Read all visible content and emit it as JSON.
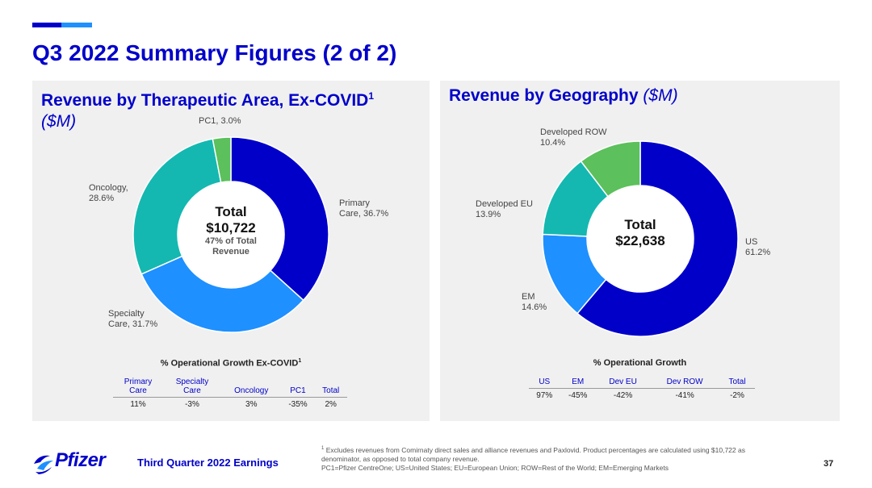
{
  "header": {
    "title": "Q3 2022 Summary Figures (2 of 2)",
    "accent_colors": [
      "#0000c9",
      "#1e90ff"
    ]
  },
  "panels": {
    "left": {
      "title": "Revenue by Therapeutic Area, Ex-COVID",
      "title_sup": "1",
      "title_sub": "($M)",
      "center_title": "Total",
      "center_value": "$10,722",
      "center_note_1": "47% of Total",
      "center_note_2": "Revenue",
      "slice_labels": {
        "primary_1": "Primary",
        "primary_2": "Care, 36.7%",
        "specialty_1": "Specialty",
        "specialty_2": "Care, 31.7%",
        "oncology_1": "Oncology,",
        "oncology_2": "28.6%",
        "pc1": "PC1, 3.0%"
      },
      "growth_title": "% Operational Growth Ex-COVID",
      "growth_title_sup": "1",
      "growth_table": {
        "headers": [
          [
            "Primary",
            "Care"
          ],
          [
            "Specialty",
            "Care"
          ],
          [
            "Oncology"
          ],
          [
            "PC1"
          ],
          [
            "Total"
          ]
        ],
        "values": [
          "11%",
          "-3%",
          "3%",
          "-35%",
          "2%"
        ]
      }
    },
    "right": {
      "title": "Revenue by Geography",
      "title_sub": "($M)",
      "center_title": "Total",
      "center_value": "$22,638",
      "slice_labels": {
        "us_1": "US",
        "us_2": "61.2%",
        "em_1": "EM",
        "em_2": "14.6%",
        "dev_eu_1": "Developed EU",
        "dev_eu_2": "13.9%",
        "dev_row_1": "Developed ROW",
        "dev_row_2": "10.4%"
      },
      "growth_title": "% Operational Growth",
      "growth_table": {
        "headers": [
          [
            "US"
          ],
          [
            "EM"
          ],
          [
            "Dev EU"
          ],
          [
            "Dev ROW"
          ],
          [
            "Total"
          ]
        ],
        "values": [
          "97%",
          "-45%",
          "-42%",
          "-41%",
          "-2%"
        ]
      }
    }
  },
  "chart_data": [
    {
      "type": "pie",
      "title": "Revenue by Therapeutic Area, Ex-COVID ($M)",
      "categories": [
        "Primary Care",
        "Specialty Care",
        "Oncology",
        "PC1"
      ],
      "values": [
        36.7,
        31.7,
        28.6,
        3.0
      ],
      "unit": "%",
      "total": "$10,722",
      "colors": [
        "#0000c9",
        "#1e90ff",
        "#14b8b0",
        "#5cc05c"
      ]
    },
    {
      "type": "pie",
      "title": "Revenue by Geography ($M)",
      "categories": [
        "US",
        "EM",
        "Developed EU",
        "Developed ROW"
      ],
      "values": [
        61.2,
        14.6,
        13.9,
        10.4
      ],
      "unit": "%",
      "total": "$22,638",
      "colors": [
        "#0000c9",
        "#1e90ff",
        "#14b8b0",
        "#5cc05c"
      ]
    },
    {
      "type": "table",
      "title": "% Operational Growth Ex-COVID",
      "categories": [
        "Primary Care",
        "Specialty Care",
        "Oncology",
        "PC1",
        "Total"
      ],
      "values": [
        11,
        -3,
        3,
        -35,
        2
      ],
      "unit": "%"
    },
    {
      "type": "table",
      "title": "% Operational Growth",
      "categories": [
        "US",
        "EM",
        "Dev EU",
        "Dev ROW",
        "Total"
      ],
      "values": [
        97,
        -45,
        -42,
        -41,
        -2
      ],
      "unit": "%"
    }
  ],
  "footer": {
    "logo_text": "Pfizer",
    "label": "Third Quarter 2022 Earnings",
    "footnote_sup": "1",
    "footnote_1": " Excludes revenues from Comirnaty direct sales and alliance revenues and Paxlovid. Product percentages are calculated using $10,722 as",
    "footnote_2": "denominator, as opposed to total company revenue.",
    "footnote_3": "PC1=Pfizer CentreOne; US=United States; EU=European Union; ROW=Rest of the World; EM=Emerging Markets",
    "page_number": "37"
  }
}
